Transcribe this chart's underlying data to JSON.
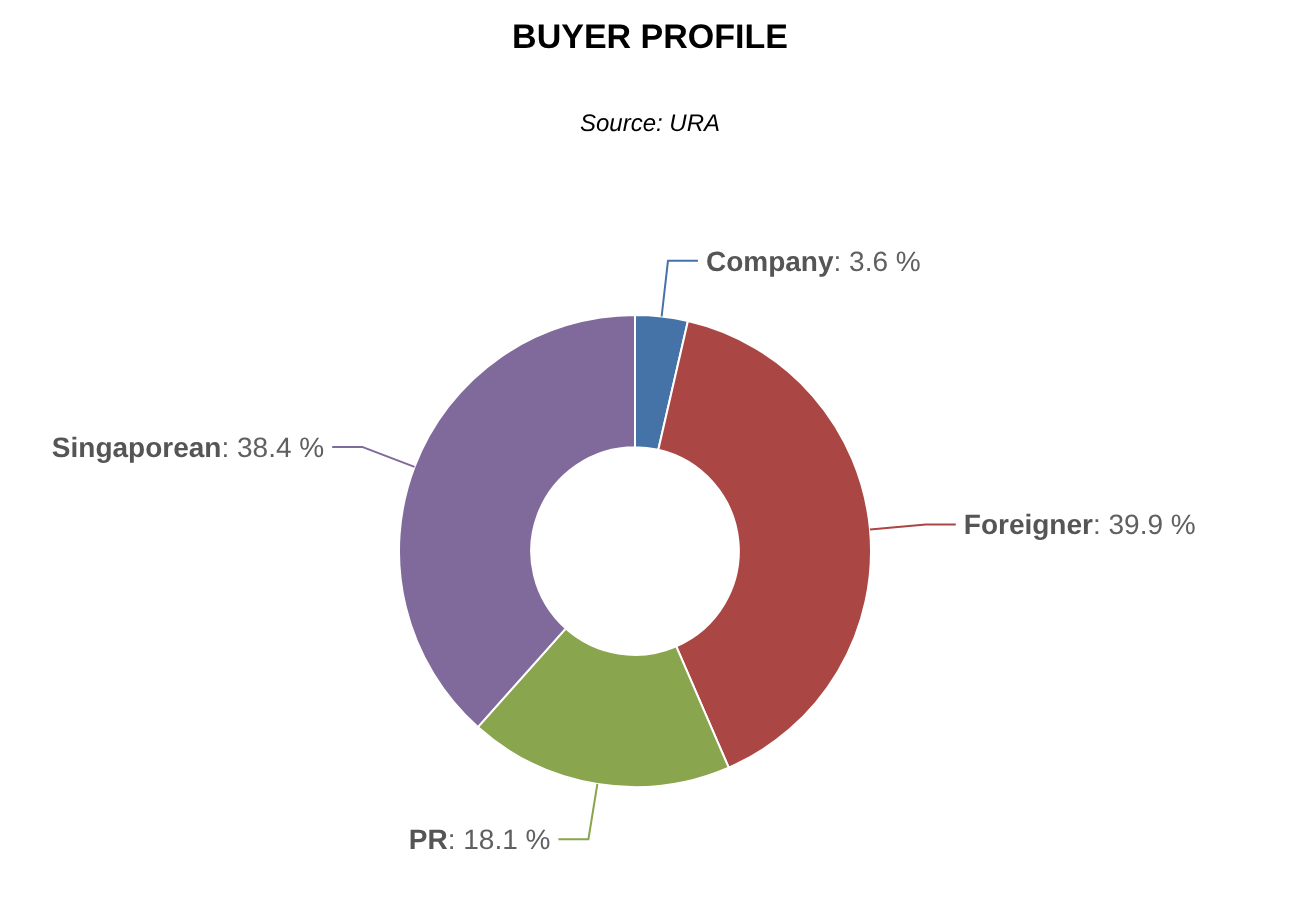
{
  "chart_data": {
    "type": "donut",
    "title": "BUYER PROFILE",
    "subtitle": "Source: URA",
    "categories": [
      "Company",
      "Foreigner",
      "PR",
      "Singaporean"
    ],
    "values": [
      3.6,
      39.9,
      18.1,
      38.4
    ],
    "colors": [
      "#4572a7",
      "#aa4643",
      "#89a54e",
      "#80699b"
    ],
    "value_labels": [
      ": 3.6 %",
      ": 39.9 %",
      ": 18.1 %",
      ": 38.4 %"
    ]
  }
}
